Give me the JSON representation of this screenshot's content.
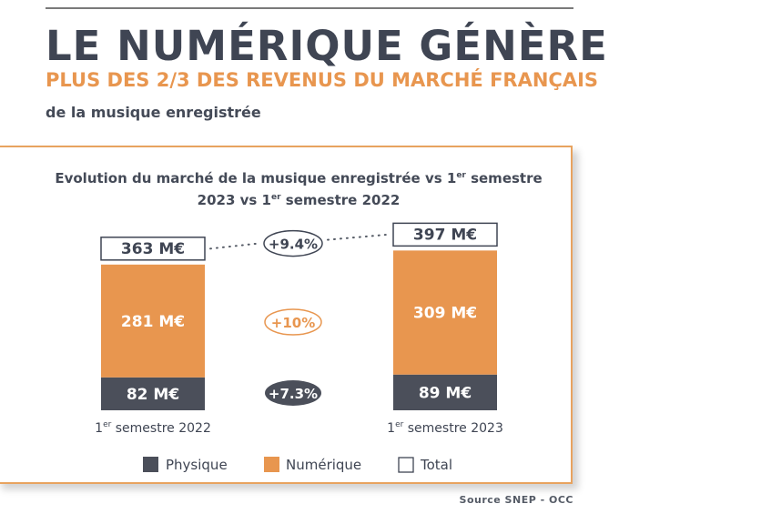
{
  "header": {
    "title": "LE NUMÉRIQUE GÉNÈRE",
    "subtitle": "PLUS DES 2/3 DES REVENUS DU MARCHÉ FRANÇAIS",
    "intro": "de la musique enregistrée"
  },
  "colors": {
    "physique": "#4b4f5a",
    "numerique": "#e8964f",
    "frame": "#e8a35f",
    "text_dark": "#3f4553"
  },
  "chart_data": {
    "type": "bar",
    "stacked": true,
    "title_line1": "Evolution du marché de la musique enregistrée vs 1er semestre",
    "title_line2": "2023 vs 1er semestre 2022",
    "categories": [
      "1er semestre 2022",
      "1er semestre 2023"
    ],
    "unit": "M€",
    "series": [
      {
        "name": "Physique",
        "values": [
          82,
          89
        ],
        "labels": [
          "82 M€",
          "89 M€"
        ],
        "color": "#4b4f5a"
      },
      {
        "name": "Numérique",
        "values": [
          281,
          309
        ],
        "labels": [
          "281 M€",
          "309 M€"
        ],
        "color": "#e8964f"
      }
    ],
    "totals": {
      "name": "Total",
      "values": [
        363,
        397
      ],
      "labels": [
        "363 M€",
        "397 M€"
      ]
    },
    "changes": {
      "total": "+9.4%",
      "numerique": "+10%",
      "physique": "+7.3%"
    },
    "legend": [
      "Physique",
      "Numérique",
      "Total"
    ],
    "legend_position": "bottom",
    "grid": false
  },
  "source": "Source SNEP - OCC"
}
